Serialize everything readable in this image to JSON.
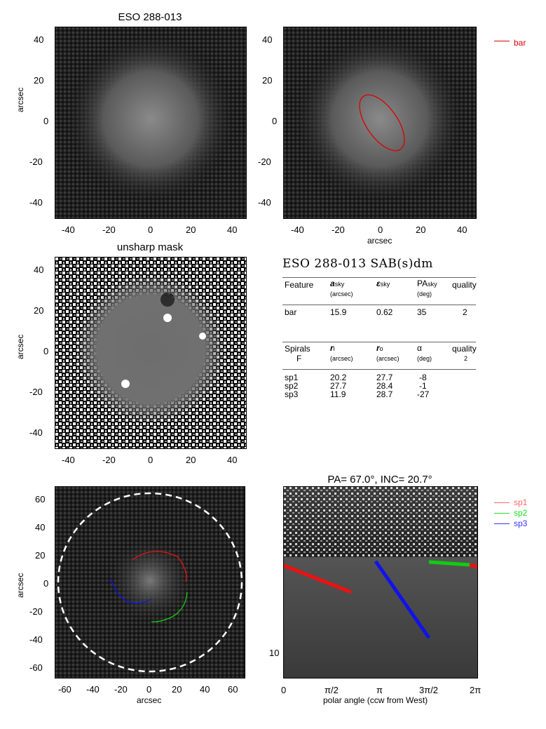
{
  "panels": {
    "top_left": {
      "title": "ESO 288-013",
      "ylabel": "arcsec",
      "xticks": [
        "-40",
        "-20",
        "0",
        "20",
        "40"
      ],
      "yticks": [
        "40",
        "20",
        "0",
        "-20",
        "-40"
      ]
    },
    "top_right": {
      "xlabel": "arcsec",
      "xticks": [
        "-40",
        "-20",
        "0",
        "20",
        "40"
      ],
      "yticks": [
        "40",
        "20",
        "0",
        "-20",
        "-40"
      ],
      "legend": [
        {
          "label": "bar",
          "color": "#dd0000"
        }
      ]
    },
    "mid_left": {
      "title": "unsharp mask",
      "ylabel": "arcsec",
      "xticks": [
        "-40",
        "-20",
        "0",
        "20",
        "40"
      ],
      "yticks": [
        "40",
        "20",
        "0",
        "-20",
        "-40"
      ]
    },
    "bottom_left": {
      "ylabel": "arcsec",
      "xlabel": "arcsec",
      "xticks": [
        "-60",
        "-40",
        "-20",
        "0",
        "20",
        "40",
        "60"
      ],
      "yticks": [
        "60",
        "40",
        "20",
        "0",
        "-20",
        "-40",
        "-60"
      ]
    },
    "bottom_right": {
      "title": "PA= 67.0°, INC= 20.7°",
      "xlabel": "polar angle (ccw from West)",
      "xticks": [
        "0",
        "π/2",
        "π",
        "3π/2",
        "2π"
      ],
      "ytick": "10",
      "legend": [
        {
          "label": "sp1",
          "color": "#ff6666"
        },
        {
          "label": "sp2",
          "color": "#22dd22"
        },
        {
          "label": "sp3",
          "color": "#3333ff"
        }
      ]
    }
  },
  "table": {
    "title": "ESO 288-013  SAB(s)dm",
    "bar_header": {
      "feature": "Feature",
      "a": "a",
      "a_sub": "sky",
      "a_unit": "(arcsec)",
      "e": "ε",
      "e_sub": "sky",
      "pa": "PA",
      "pa_sub": "sky",
      "pa_unit": "(deg)",
      "quality": "quality"
    },
    "bar_row": {
      "feature": "bar",
      "a": "15.9",
      "e": "0.62",
      "pa": "35",
      "quality": "2"
    },
    "spiral_header": {
      "spirals": "Spirals",
      "f": "F",
      "ri": "r",
      "ri_sub": "i",
      "ri_unit": "(arcsec)",
      "ro": "r",
      "ro_sub": "o",
      "ro_unit": "(arcsec)",
      "alpha": "α",
      "alpha_unit": "(deg)",
      "quality": "quality",
      "quality_val": "2"
    },
    "spiral_rows": [
      {
        "name": "sp1",
        "ri": "20.2",
        "ro": "27.7",
        "alpha": "-8"
      },
      {
        "name": "sp2",
        "ri": "27.7",
        "ro": "28.4",
        "alpha": "-1"
      },
      {
        "name": "sp3",
        "ri": "11.9",
        "ro": "28.7",
        "alpha": "-27"
      }
    ]
  },
  "colors": {
    "bar": "#dd0000",
    "sp1": "#ee1111",
    "sp2": "#11cc11",
    "sp3": "#1111ee"
  }
}
